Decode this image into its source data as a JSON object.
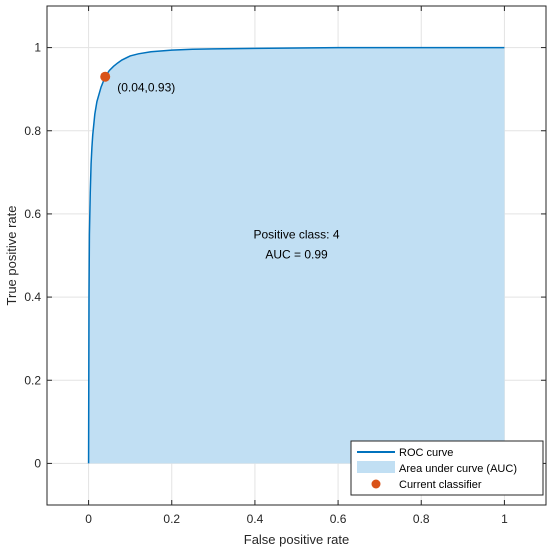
{
  "chart_data": {
    "type": "area",
    "title": "",
    "xlabel": "False positive rate",
    "ylabel": "True positive rate",
    "xlim": [
      -0.1,
      1.1
    ],
    "ylim": [
      -0.1,
      1.1
    ],
    "x_ticks": [
      0,
      0.2,
      0.4,
      0.6,
      0.8,
      1
    ],
    "x_tick_labels": [
      "0",
      "0.2",
      "0.4",
      "0.6",
      "0.8",
      "1"
    ],
    "y_ticks": [
      0,
      0.2,
      0.4,
      0.6,
      0.8,
      1
    ],
    "y_tick_labels": [
      "0",
      "0.2",
      "0.4",
      "0.6",
      "0.8",
      "1"
    ],
    "grid": true,
    "legend_position": "bottom-right",
    "series": [
      {
        "name": "ROC curve",
        "color": "#0072bd",
        "x": [
          0,
          0.001,
          0.002,
          0.004,
          0.006,
          0.008,
          0.01,
          0.015,
          0.02,
          0.03,
          0.04,
          0.05,
          0.06,
          0.07,
          0.08,
          0.1,
          0.12,
          0.15,
          0.2,
          0.25,
          0.3,
          0.4,
          0.5,
          0.6,
          0.8,
          1
        ],
        "y": [
          0,
          0.4,
          0.55,
          0.65,
          0.72,
          0.76,
          0.79,
          0.84,
          0.87,
          0.905,
          0.93,
          0.945,
          0.955,
          0.963,
          0.97,
          0.98,
          0.985,
          0.99,
          0.994,
          0.996,
          0.997,
          0.998,
          0.999,
          1,
          1,
          1
        ]
      }
    ],
    "auc_area": {
      "name": "Area under curve (AUC)",
      "color": "#c1dff3"
    },
    "current_classifier": {
      "name": "Current classifier",
      "x": 0.04,
      "y": 0.93,
      "label": "(0.04,0.93)",
      "color": "#d95319"
    },
    "annotation": {
      "line1": "Positive class: 4",
      "line2": "AUC = 0.99",
      "x": 0.5,
      "y": 0.55
    },
    "legend": [
      {
        "label": "ROC curve",
        "kind": "line",
        "color": "#0072bd"
      },
      {
        "label": "Area under curve (AUC)",
        "kind": "patch",
        "color": "#c1dff3"
      },
      {
        "label": "Current classifier",
        "kind": "marker",
        "color": "#d95319"
      }
    ]
  }
}
